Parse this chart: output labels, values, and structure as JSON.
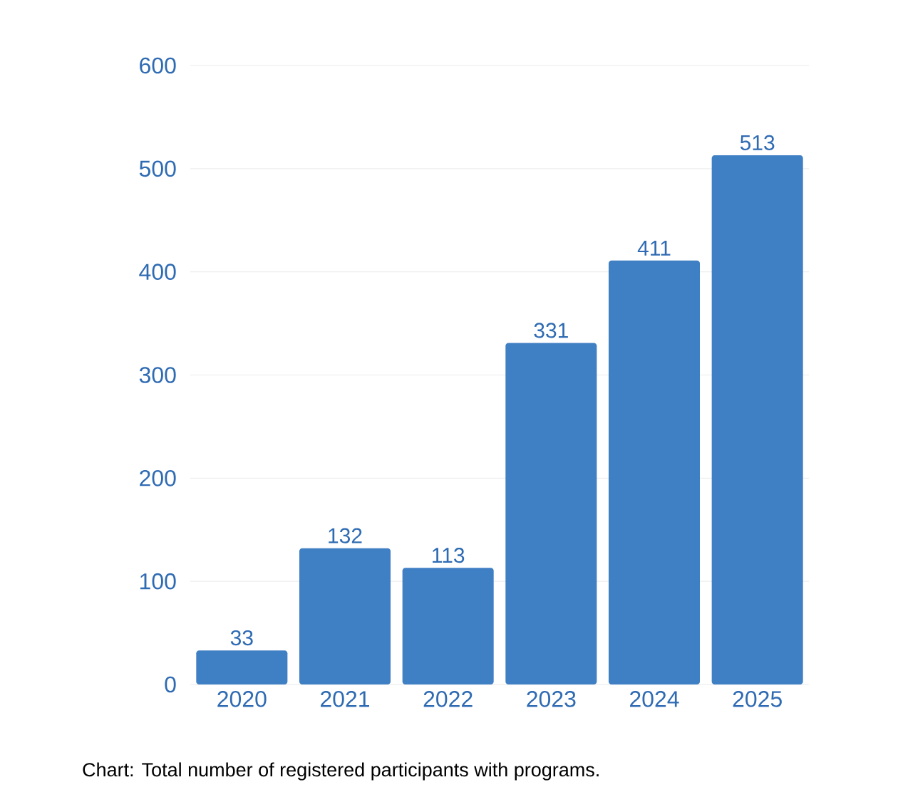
{
  "chart_data": {
    "type": "bar",
    "categories": [
      "2020",
      "2021",
      "2022",
      "2023",
      "2024",
      "2025"
    ],
    "values": [
      33,
      132,
      113,
      331,
      411,
      513
    ],
    "color": "#3f7fc4",
    "ylim": [
      0,
      600
    ],
    "yticks": [
      0,
      100,
      200,
      300,
      400,
      500,
      600
    ],
    "grid": "y",
    "data_labels": true,
    "annotations": [
      "Chart: Total number of registered participants with programs."
    ]
  }
}
